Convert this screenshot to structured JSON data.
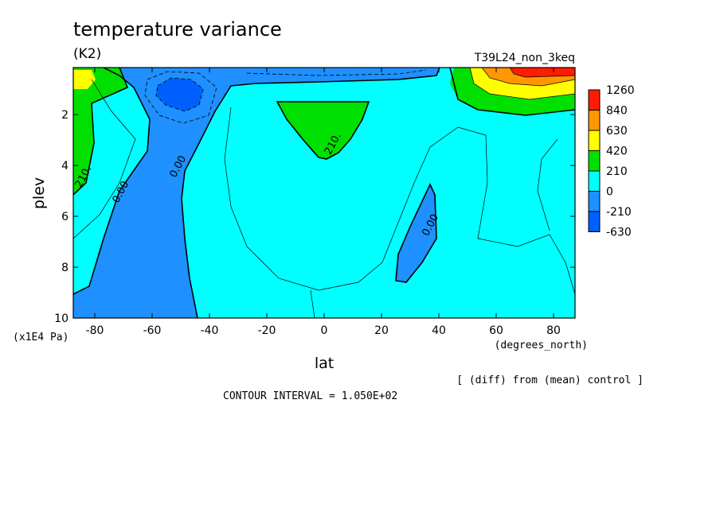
{
  "chart_data": {
    "type": "contour",
    "title": "temperature variance",
    "units": "(K2)",
    "run": "T39L24_non_3keq",
    "xlabel": "lat",
    "x_units": "(degrees_north)",
    "ylabel": "plev",
    "y_units": "(x1E4 Pa)",
    "xlim": [
      -87.5,
      87.5
    ],
    "ylim": [
      10,
      0.15
    ],
    "xticks": [
      "-80",
      "-60",
      "-40",
      "-20",
      "0",
      "20",
      "40",
      "60",
      "80"
    ],
    "xtick_values": [
      -80,
      -60,
      -40,
      -20,
      0,
      20,
      40,
      60,
      80
    ],
    "yticks": [
      "2",
      "4",
      "6",
      "8",
      "10"
    ],
    "ytick_values": [
      2,
      4,
      6,
      8,
      10
    ],
    "note": "[ (diff) from (mean) control ]",
    "contour_interval": "CONTOUR INTERVAL = 1.050E+02",
    "contour_labels": [
      {
        "text": "210.",
        "lat": -83,
        "plev": 4.5
      },
      {
        "text": "0.00",
        "lat": -70,
        "plev": 5.1
      },
      {
        "text": "0.00",
        "lat": -50,
        "plev": 4.1
      },
      {
        "text": "210.",
        "lat": 4,
        "plev": 3.2
      },
      {
        "text": "0.00",
        "lat": 38,
        "plev": 6.4
      }
    ],
    "legend": {
      "labels": [
        "1260",
        "840",
        "630",
        "420",
        "210",
        "0",
        "-210",
        "-630"
      ],
      "colors": [
        "#ff1c00",
        "#ff9800",
        "#ffff00",
        "#00e000",
        "#00ffff",
        "#1e90ff",
        "#0060ff"
      ]
    },
    "palette": {
      "background": "#00ffff",
      "negative": "#1e90ff",
      "strong_negative": "#0060ff",
      "positive": "#00e000",
      "yellow": "#ffff00",
      "orange": "#ff9800",
      "red": "#ff1c00"
    }
  }
}
